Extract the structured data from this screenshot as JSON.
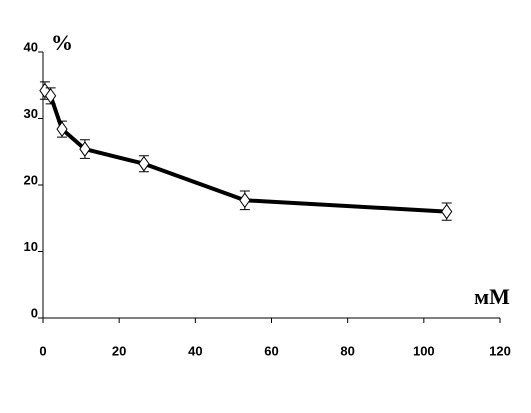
{
  "chart_data": {
    "type": "line",
    "y_label": "%",
    "x_label": "мМ",
    "x": [
      0.5,
      2,
      5,
      11,
      26.5,
      53,
      106
    ],
    "values": [
      34.2,
      33.4,
      28.4,
      25.4,
      23.2,
      17.7,
      16.0
    ],
    "errors": [
      1.3,
      1.2,
      1.2,
      1.4,
      1.2,
      1.4,
      1.3
    ],
    "color": "#000000",
    "xlim": [
      0,
      120
    ],
    "xticks": [
      0,
      20,
      40,
      60,
      80,
      100,
      120
    ],
    "ylim": [
      0,
      40
    ],
    "yticks": [
      0,
      10,
      20,
      30,
      40
    ]
  }
}
